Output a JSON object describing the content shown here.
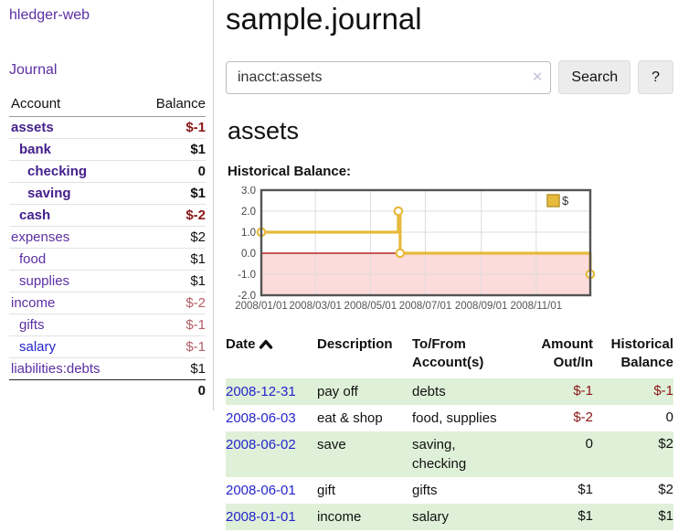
{
  "app": {
    "brand": "hledger-web",
    "nav_journal": "Journal"
  },
  "colors": {
    "accent_purple": "#5b2fa3",
    "purple_bold": "#44208c",
    "link_blue": "#2424cc",
    "negative_red": "#8b1616",
    "negative_red_muted": "#b25e66",
    "row_green": "#dff0d8",
    "chart_line_gold": "#e7ba3c",
    "chart_zero_line": "#a40000",
    "chart_negative_fill": "#fcdbdb"
  },
  "sidebar": {
    "accounts_header": {
      "account": "Account",
      "balance": "Balance"
    },
    "accounts": [
      {
        "name": "assets",
        "depth": 1,
        "bold": true,
        "balance": "$-1"
      },
      {
        "name": "bank",
        "depth": 2,
        "bold": true,
        "balance": "$1"
      },
      {
        "name": "checking",
        "depth": 3,
        "bold": true,
        "balance": "0"
      },
      {
        "name": "saving",
        "depth": 3,
        "bold": true,
        "balance": "$1"
      },
      {
        "name": "cash",
        "depth": 2,
        "bold": true,
        "balance": "$-2"
      },
      {
        "name": "expenses",
        "depth": 1,
        "bold": false,
        "balance": "$2"
      },
      {
        "name": "food",
        "depth": 2,
        "bold": false,
        "balance": "$1"
      },
      {
        "name": "supplies",
        "depth": 2,
        "bold": false,
        "balance": "$1"
      },
      {
        "name": "income",
        "depth": 1,
        "bold": false,
        "balance": "$-2"
      },
      {
        "name": "gifts",
        "depth": 2,
        "bold": false,
        "balance": "$-1"
      },
      {
        "name": "salary",
        "depth": 2,
        "bold": false,
        "balance": "$-1",
        "link_style": "blue"
      },
      {
        "name": "liabilities:debts",
        "depth": 1,
        "bold": false,
        "balance": "$1"
      }
    ],
    "total": "0"
  },
  "header": {
    "title": "sample.journal"
  },
  "search": {
    "value": "inacct:assets",
    "clear_label": "✕",
    "button": "Search",
    "help": "?"
  },
  "account_page": {
    "title": "assets",
    "chart_label": "Historical Balance:"
  },
  "chart_data": {
    "type": "line",
    "step": true,
    "title": "Historical Balance:",
    "series": [
      {
        "name": "$",
        "x": [
          "2008/01/01",
          "2008/06/01",
          "2008/06/03",
          "2008/12/31"
        ],
        "values": [
          1,
          2,
          0,
          -1
        ]
      }
    ],
    "x_range": [
      "2008/01/01",
      "2008/12/31"
    ],
    "ylim": [
      -2,
      3
    ],
    "yticks": [
      3.0,
      2.0,
      1.0,
      0.0,
      -1.0,
      -2.0
    ],
    "xticks": [
      "2008/01/01",
      "2008/03/01",
      "2008/05/01",
      "2008/07/01",
      "2008/09/01",
      "2008/11/01"
    ],
    "grid": true,
    "legend": "$",
    "legend_position": "top-right",
    "negative_region_shaded": true
  },
  "register": {
    "columns": [
      "Date",
      "Description",
      "To/From Account(s)",
      "Amount Out/In",
      "Historical Balance"
    ],
    "rows": [
      {
        "date": "2008-12-31",
        "description": "pay off",
        "accounts": "debts",
        "amount": "$-1",
        "balance": "$-1"
      },
      {
        "date": "2008-06-03",
        "description": "eat & shop",
        "accounts": "food, supplies",
        "amount": "$-2",
        "balance": "0"
      },
      {
        "date": "2008-06-02",
        "description": "save",
        "accounts": "saving, checking",
        "amount": "0",
        "balance": "$2"
      },
      {
        "date": "2008-06-01",
        "description": "gift",
        "accounts": "gifts",
        "amount": "$1",
        "balance": "$2"
      },
      {
        "date": "2008-01-01",
        "description": "income",
        "accounts": "salary",
        "amount": "$1",
        "balance": "$1"
      }
    ]
  }
}
